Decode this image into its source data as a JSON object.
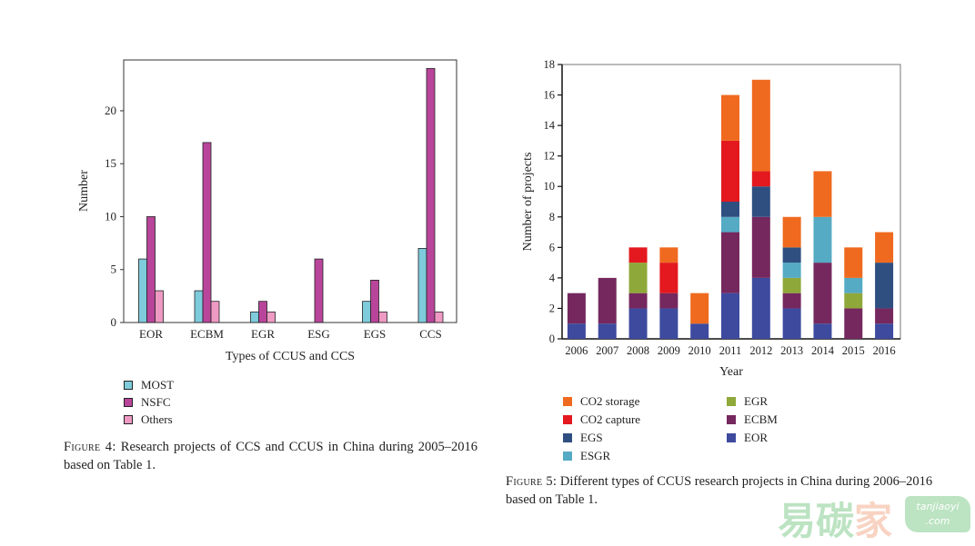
{
  "chart_data": [
    {
      "type": "bar",
      "title": "",
      "xlabel": "Types of CCUS and CCS",
      "ylabel": "Number",
      "ylim": [
        0,
        24.8
      ],
      "yticks": [
        0,
        5,
        10,
        15,
        20
      ],
      "ytick_labels": [
        "0",
        "5",
        "10",
        "15",
        "20"
      ],
      "categories": [
        "EOR",
        "ECBM",
        "EGR",
        "ESG",
        "EGS",
        "CCS"
      ],
      "series": [
        {
          "name": "MOST",
          "color": "#7ecbdc",
          "values": [
            6,
            3,
            1,
            0,
            2,
            7
          ]
        },
        {
          "name": "NSFC",
          "color": "#b8459a",
          "values": [
            10,
            17,
            2,
            6,
            4,
            24
          ]
        },
        {
          "name": "Others",
          "color": "#ee9ac4",
          "values": [
            3,
            2,
            1,
            0,
            1,
            1
          ]
        }
      ],
      "legend_position": "below",
      "grid": false,
      "caption_label": "Figure 4:",
      "caption_text": " Research projects of CCS and CCUS in China during 2005–2016 based on Table 1."
    },
    {
      "type": "bar",
      "stacked": true,
      "title": "",
      "xlabel": "Year",
      "ylabel": "Number of projects",
      "ylim": [
        0,
        18
      ],
      "yticks": [
        0,
        2,
        4,
        6,
        8,
        10,
        12,
        14,
        16,
        18
      ],
      "ytick_labels": [
        "0",
        "2",
        "4",
        "6",
        "8",
        "10",
        "12",
        "14",
        "16",
        "18"
      ],
      "categories": [
        "2006",
        "2007",
        "2008",
        "2009",
        "2010",
        "2011",
        "2012",
        "2013",
        "2014",
        "2015",
        "2016"
      ],
      "series": [
        {
          "name": "EOR",
          "color": "#3d4a9e",
          "values": [
            1,
            1,
            2,
            2,
            1,
            3,
            4,
            2,
            1,
            0,
            1
          ]
        },
        {
          "name": "ECBM",
          "color": "#75285e",
          "values": [
            2,
            3,
            1,
            1,
            0,
            4,
            4,
            1,
            4,
            2,
            1
          ]
        },
        {
          "name": "EGR",
          "color": "#8fa83a",
          "values": [
            0,
            0,
            2,
            0,
            0,
            0,
            0,
            1,
            0,
            1,
            0
          ]
        },
        {
          "name": "ESGR",
          "color": "#55aac4",
          "values": [
            0,
            0,
            0,
            0,
            0,
            1,
            0,
            1,
            3,
            1,
            0
          ]
        },
        {
          "name": "EGS",
          "color": "#2f4f80",
          "values": [
            0,
            0,
            0,
            0,
            0,
            1,
            2,
            1,
            0,
            0,
            3
          ]
        },
        {
          "name": "CO2 capture",
          "color": "#e3191f",
          "values": [
            0,
            0,
            1,
            2,
            0,
            4,
            1,
            0,
            0,
            0,
            0
          ]
        },
        {
          "name": "CO2 storage",
          "color": "#ef6a1f",
          "values": [
            0,
            0,
            0,
            1,
            2,
            3,
            6,
            2,
            3,
            2,
            2
          ]
        }
      ],
      "legend_order": [
        "CO2 storage",
        "EGR",
        "CO2 capture",
        "ECBM",
        "EGS",
        "EOR",
        "ESGR"
      ],
      "legend_position": "below",
      "grid": false,
      "caption_label": "Figure 5:",
      "caption_text": " Different types of CCUS research projects in China during 2006–2016 based on Table 1."
    }
  ],
  "watermark": {
    "chars": [
      "易",
      "碳",
      "家"
    ],
    "colors": [
      "#6cc27a",
      "#6cc27a",
      "#f0a07a"
    ],
    "badge_line1": "tanjiaoyi",
    "badge_line2": ".com"
  }
}
